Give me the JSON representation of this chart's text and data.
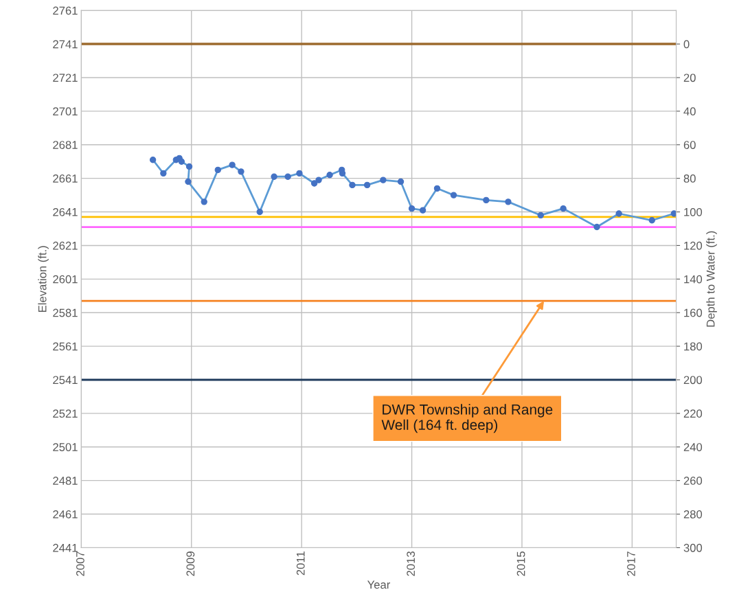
{
  "chart_data": {
    "type": "line",
    "xlabel": "Year",
    "ylabel": "Elevation (ft.)",
    "y2label": "Depth to Water (ft.)",
    "x": [
      2008.3,
      2008.49,
      2008.72,
      2008.78,
      2008.82,
      2008.96,
      2008.94,
      2009.23,
      2009.48,
      2009.74,
      2009.9,
      2010.24,
      2010.5,
      2010.75,
      2010.96,
      2011.23,
      2011.31,
      2011.51,
      2011.73,
      2011.74,
      2011.92,
      2012.19,
      2012.48,
      2012.8,
      2013.0,
      2013.2,
      2013.46,
      2013.76,
      2014.35,
      2014.75,
      2015.34,
      2015.75,
      2016.36,
      2016.76,
      2017.36,
      2017.76
    ],
    "series": [
      {
        "color": "#5b9bd5",
        "values": [
          2672,
          2664,
          2672,
          2673,
          2671,
          2668,
          2659,
          2647,
          2666,
          2669,
          2665,
          2641,
          2662,
          2662,
          2664,
          2658,
          2660,
          2663,
          2666,
          2664,
          2657,
          2657,
          2660,
          2659,
          2643,
          2642,
          2655,
          2651,
          2648,
          2647,
          2639,
          2643,
          2632,
          2640,
          2636,
          2640
        ]
      }
    ],
    "marker": "circle",
    "line_style": "solid",
    "grid": true,
    "xlim": [
      2007,
      2017.8
    ],
    "xticks": [
      2007,
      2009,
      2011,
      2013,
      2015,
      2017
    ],
    "ylim": [
      2441,
      2761
    ],
    "yticks": [
      2441,
      2461,
      2481,
      2501,
      2521,
      2541,
      2561,
      2581,
      2601,
      2621,
      2641,
      2661,
      2681,
      2701,
      2721,
      2741,
      2761
    ],
    "y2lim": [
      300,
      -20
    ],
    "y2ticks": [
      0,
      20,
      40,
      60,
      80,
      100,
      120,
      140,
      160,
      180,
      200,
      220,
      240,
      260,
      280,
      300
    ],
    "ref_lines": [
      {
        "axis": "y",
        "value": 2741,
        "color": "#9c6a2e"
      },
      {
        "axis": "y",
        "value": 2638,
        "color": "#ffc000"
      },
      {
        "axis": "y",
        "value": 2632,
        "color": "#ff66ff"
      },
      {
        "axis": "y",
        "value": 2588,
        "color": "#f58220"
      },
      {
        "axis": "y",
        "value": 2541,
        "color": "#1f3b5c"
      }
    ],
    "annotations": [
      {
        "text": "DWR Township and Range\nWell (164 ft. deep)",
        "x": 2015.4,
        "y": 2588
      }
    ]
  }
}
